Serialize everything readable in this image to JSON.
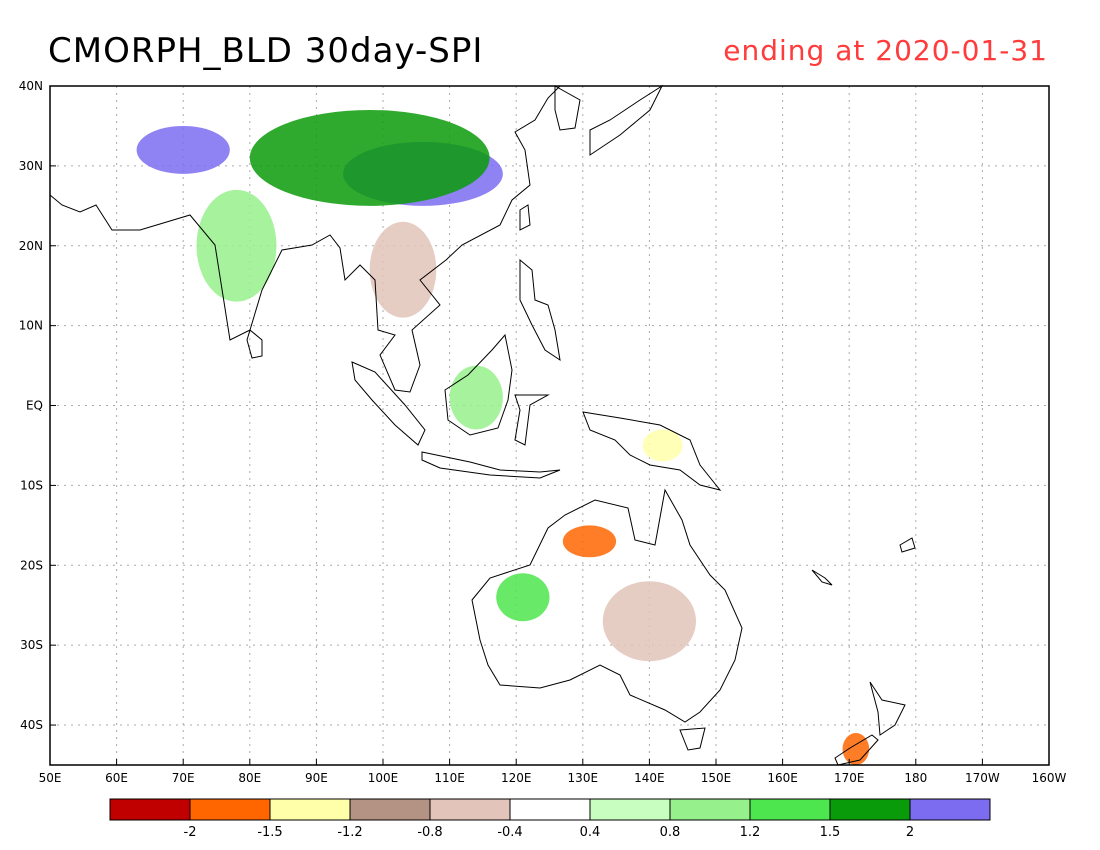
{
  "title": "CMORPH_BLD 30day-SPI",
  "subtitle": "ending at 2020-01-31",
  "subtitle_color": "#ff3b3b",
  "map": {
    "lon_range": [
      50,
      200
    ],
    "lat_range": [
      -45,
      40
    ],
    "lon_ticks": [
      {
        "lon": 50,
        "label": "50E"
      },
      {
        "lon": 60,
        "label": "60E"
      },
      {
        "lon": 70,
        "label": "70E"
      },
      {
        "lon": 80,
        "label": "80E"
      },
      {
        "lon": 90,
        "label": "90E"
      },
      {
        "lon": 100,
        "label": "100E"
      },
      {
        "lon": 110,
        "label": "110E"
      },
      {
        "lon": 120,
        "label": "120E"
      },
      {
        "lon": 130,
        "label": "130E"
      },
      {
        "lon": 140,
        "label": "140E"
      },
      {
        "lon": 150,
        "label": "150E"
      },
      {
        "lon": 160,
        "label": "160E"
      },
      {
        "lon": 170,
        "label": "170E"
      },
      {
        "lon": 180,
        "label": "180"
      },
      {
        "lon": 190,
        "label": "170W"
      },
      {
        "lon": 200,
        "label": "160W"
      }
    ],
    "lat_ticks": [
      {
        "lat": 40,
        "label": "40N"
      },
      {
        "lat": 30,
        "label": "30N"
      },
      {
        "lat": 20,
        "label": "20N"
      },
      {
        "lat": 10,
        "label": "10N"
      },
      {
        "lat": 0,
        "label": "EQ"
      },
      {
        "lat": -10,
        "label": "10S"
      },
      {
        "lat": -20,
        "label": "20S"
      },
      {
        "lat": -30,
        "label": "30S"
      },
      {
        "lat": -40,
        "label": "40S"
      }
    ],
    "regions": [
      {
        "name": "east-china-wet",
        "level": 2,
        "lon": 106,
        "lat": 29,
        "rlon": 12,
        "rlat": 4
      },
      {
        "name": "tibet-wet",
        "level": 2,
        "lon": 70,
        "lat": 32,
        "rlon": 7,
        "rlat": 3
      },
      {
        "name": "china-green",
        "level": 1.5,
        "lon": 98,
        "lat": 31,
        "rlon": 18,
        "rlat": 6
      },
      {
        "name": "india-green",
        "level": 0.8,
        "lon": 78,
        "lat": 20,
        "rlon": 6,
        "rlat": 7
      },
      {
        "name": "indochina-dry",
        "level": -0.8,
        "lon": 103,
        "lat": 17,
        "rlon": 5,
        "rlat": 6
      },
      {
        "name": "borneo-mixed",
        "level": 0.8,
        "lon": 114,
        "lat": 1,
        "rlon": 4,
        "rlat": 4
      },
      {
        "name": "n-australia-dry",
        "level": -2,
        "lon": 131,
        "lat": -17,
        "rlon": 4,
        "rlat": 2
      },
      {
        "name": "c-australia-dry",
        "level": -0.8,
        "lon": 140,
        "lat": -27,
        "rlon": 7,
        "rlat": 5
      },
      {
        "name": "w-australia-wet",
        "level": 1.2,
        "lon": 121,
        "lat": -24,
        "rlon": 4,
        "rlat": 3
      },
      {
        "name": "png-dry",
        "level": -1.5,
        "lon": 142,
        "lat": -5,
        "rlon": 3,
        "rlat": 2
      },
      {
        "name": "new-zealand-dry",
        "level": -2,
        "lon": 171,
        "lat": -43,
        "rlon": 2,
        "rlat": 2
      }
    ]
  },
  "colorbar": {
    "colors": [
      "#c00000",
      "#ff6600",
      "#ffffaa",
      "#b49384",
      "#e2c4ba",
      "#ffffff",
      "#c8ffc0",
      "#96f08c",
      "#4ee64e",
      "#0a9b0a",
      "#7b6cf0"
    ],
    "labels": [
      "-2",
      "-1.5",
      "-1.2",
      "-0.8",
      "-0.4",
      "0.4",
      "0.8",
      "1.2",
      "1.5",
      "2"
    ]
  }
}
